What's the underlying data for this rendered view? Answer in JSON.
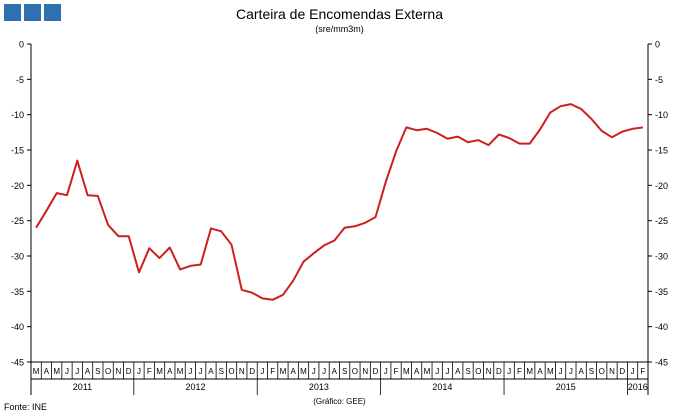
{
  "header": {
    "title": "Carteira de Encomendas Externa",
    "subtitle": "(sre/mm3m)",
    "logo_color": "#2f6fb2"
  },
  "footer": {
    "source": "Fonte: INE",
    "credit": "(Gráfico: GEE)"
  },
  "chart_data": {
    "type": "line",
    "title": "Carteira de Encomendas Externa",
    "subtitle": "(sre/mm3m)",
    "ylim": [
      -45,
      0
    ],
    "yticks": [
      0,
      -5,
      -10,
      -15,
      -20,
      -25,
      -30,
      -35,
      -40,
      -45
    ],
    "y_axes": [
      "left",
      "right"
    ],
    "grid": false,
    "line_color": "#cc1f1f",
    "month_labels": [
      "M",
      "A",
      "M",
      "J",
      "J",
      "A",
      "S",
      "O",
      "N",
      "D",
      "J",
      "F",
      "M",
      "A",
      "M",
      "J",
      "J",
      "A",
      "S",
      "O",
      "N",
      "D",
      "J",
      "F",
      "M",
      "A",
      "M",
      "J",
      "J",
      "A",
      "S",
      "O",
      "N",
      "D",
      "J",
      "F",
      "M",
      "A",
      "M",
      "J",
      "J",
      "A",
      "S",
      "O",
      "N",
      "D",
      "J",
      "F",
      "M",
      "A",
      "M",
      "J",
      "J",
      "A",
      "S",
      "O",
      "N",
      "D",
      "J",
      "F"
    ],
    "year_labels": [
      {
        "label": "2011",
        "start": 0,
        "count": 10
      },
      {
        "label": "2012",
        "start": 10,
        "count": 12
      },
      {
        "label": "2013",
        "start": 22,
        "count": 12
      },
      {
        "label": "2014",
        "start": 34,
        "count": 12
      },
      {
        "label": "2015",
        "start": 46,
        "count": 12
      },
      {
        "label": "2016",
        "start": 58,
        "count": 2
      }
    ],
    "series": [
      {
        "values": [
          -26.0,
          -23.6,
          -21.1,
          -21.4,
          -16.5,
          -21.4,
          -21.5,
          -25.6,
          -27.2,
          -27.2,
          -32.3,
          -28.9,
          -30.3,
          -28.8,
          -31.9,
          -31.4,
          -31.2,
          -26.1,
          -26.5,
          -28.4,
          -34.8,
          -35.2,
          -36.0,
          -36.2,
          -35.5,
          -33.5,
          -30.8,
          -29.6,
          -28.5,
          -27.8,
          -26.0,
          -25.8,
          -25.3,
          -24.5,
          -19.5,
          -15.2,
          -11.8,
          -12.2,
          -12.0,
          -12.6,
          -13.4,
          -13.1,
          -13.9,
          -13.6,
          -14.3,
          -12.8,
          -13.3,
          -14.1,
          -14.1,
          -12.1,
          -9.7,
          -8.8,
          -8.5,
          -9.2,
          -10.6,
          -12.3,
          -13.2,
          -12.4,
          -12.0,
          -11.8
        ]
      }
    ]
  }
}
